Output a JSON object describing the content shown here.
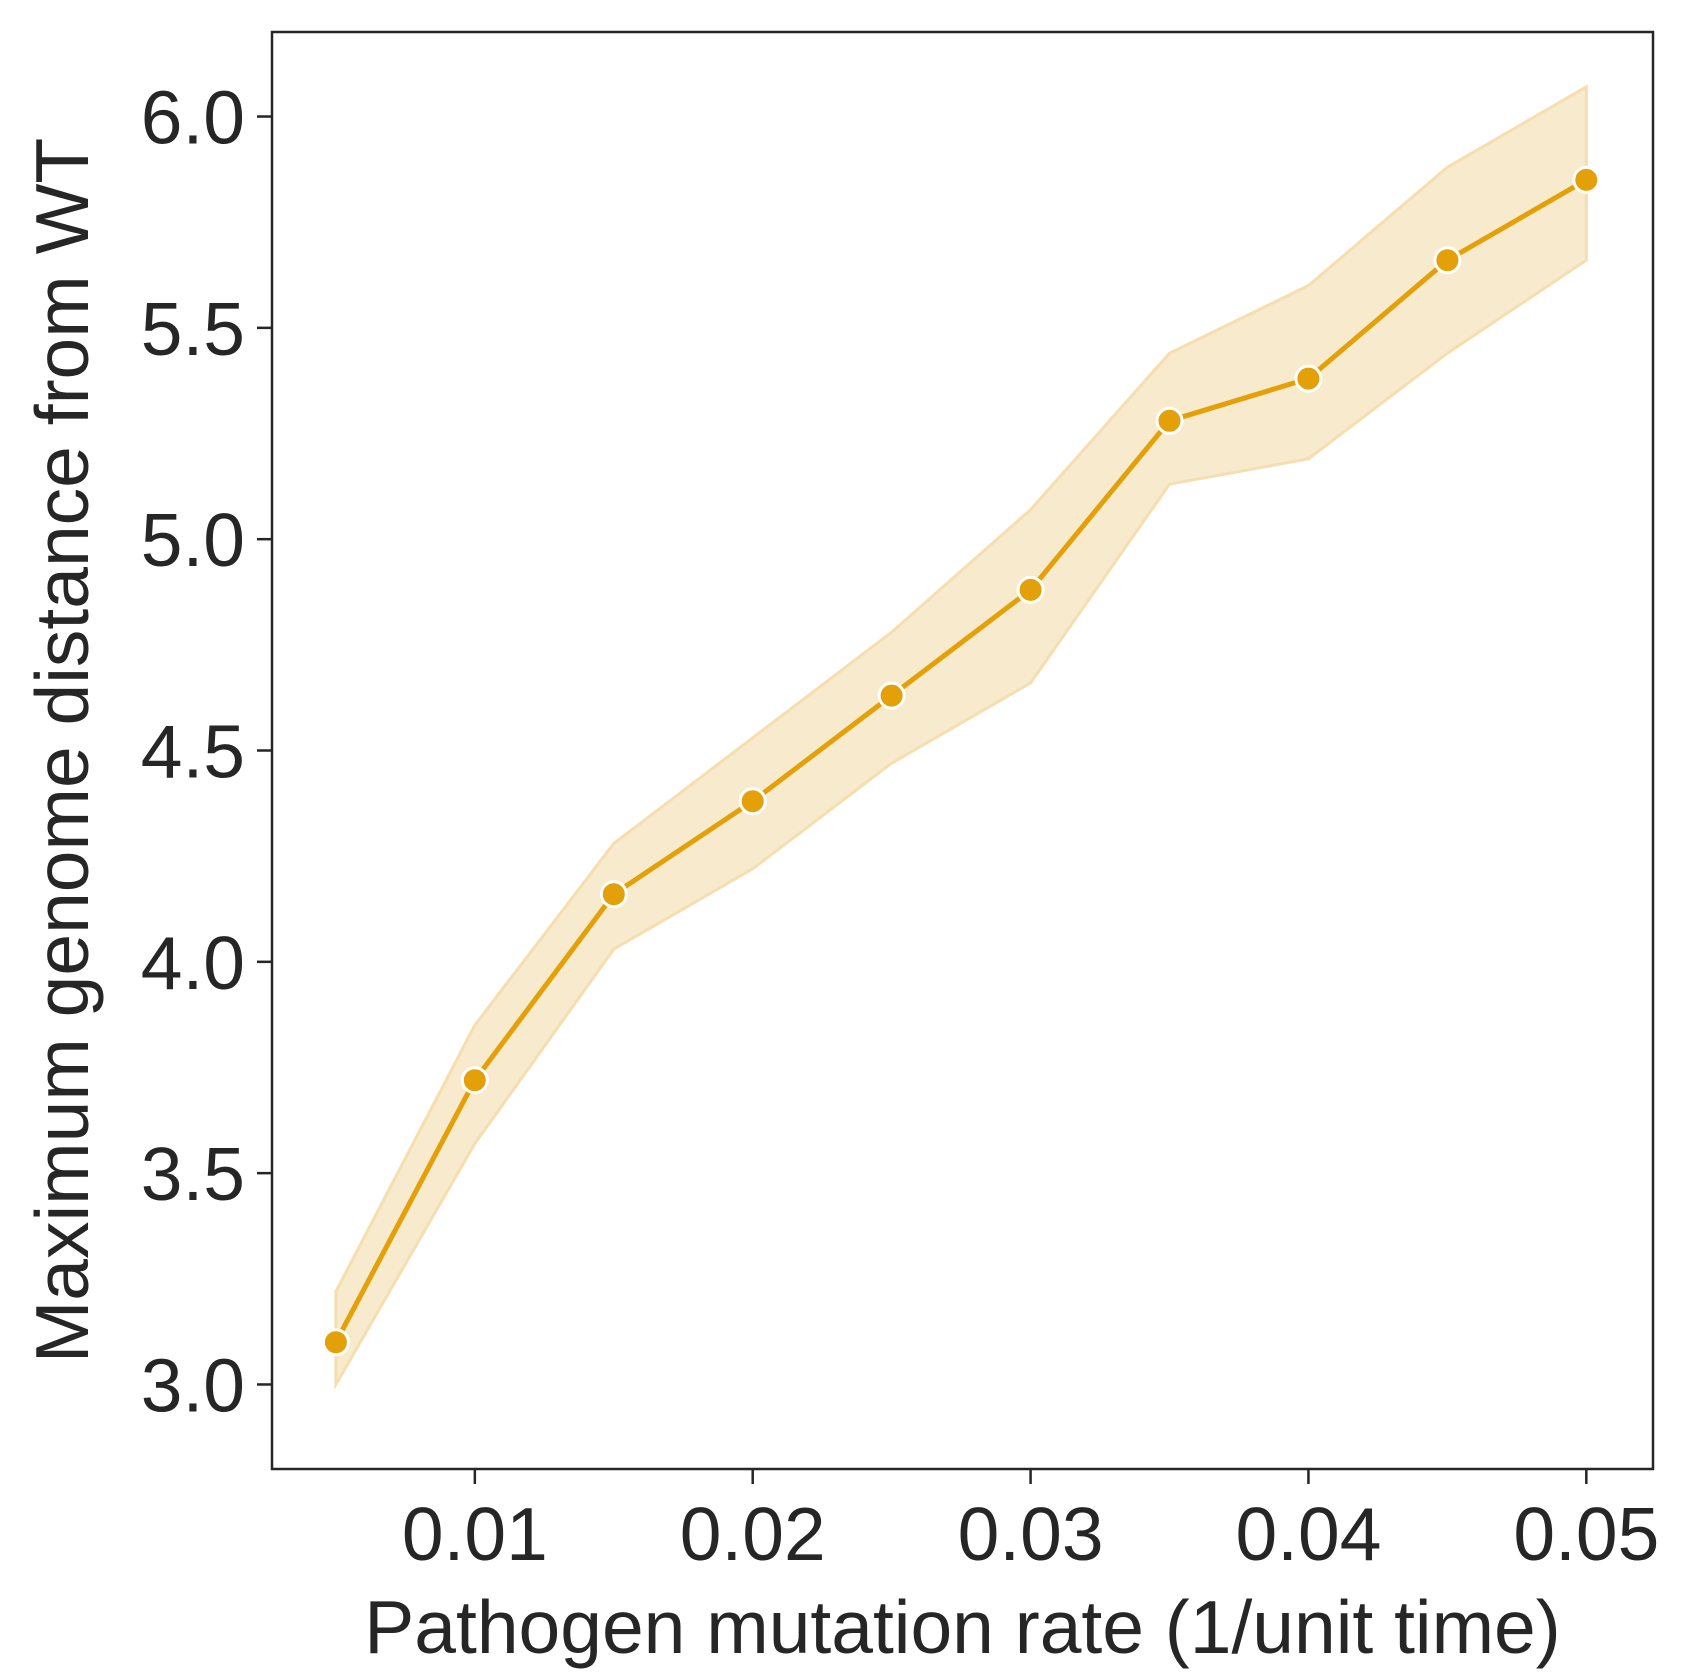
{
  "chart_data": {
    "type": "line",
    "title": "",
    "xlabel": "Pathogen mutation rate (1/unit time)",
    "ylabel": "Maximum genome distance from WT",
    "xlim": [
      0.0027,
      0.0524
    ],
    "ylim": [
      2.8,
      6.2
    ],
    "xticks": [
      0.01,
      0.02,
      0.03,
      0.04,
      0.05
    ],
    "xtick_labels": [
      "0.01",
      "0.02",
      "0.03",
      "0.04",
      "0.05"
    ],
    "yticks": [
      3.0,
      3.5,
      4.0,
      4.5,
      5.0,
      5.5,
      6.0
    ],
    "ytick_labels": [
      "3.0",
      "3.5",
      "4.0",
      "4.5",
      "5.0",
      "5.5",
      "6.0"
    ],
    "grid": false,
    "legend": "none",
    "colors": {
      "line": "#e3a008",
      "band": "#f5deb0",
      "marker_edge": "#ffffff",
      "axes": "#262626"
    },
    "series": [
      {
        "x": [
          0.005,
          0.01,
          0.015,
          0.02,
          0.025,
          0.03,
          0.035,
          0.04,
          0.045,
          0.05
        ],
        "y": [
          3.1,
          3.72,
          4.16,
          4.38,
          4.63,
          4.88,
          5.28,
          5.38,
          5.66,
          5.85
        ],
        "ci_lower": [
          3.0,
          3.57,
          4.03,
          4.22,
          4.47,
          4.66,
          5.13,
          5.19,
          5.44,
          5.66
        ],
        "ci_upper": [
          3.22,
          3.85,
          4.28,
          4.53,
          4.78,
          5.07,
          5.44,
          5.6,
          5.88,
          6.07
        ]
      }
    ]
  }
}
